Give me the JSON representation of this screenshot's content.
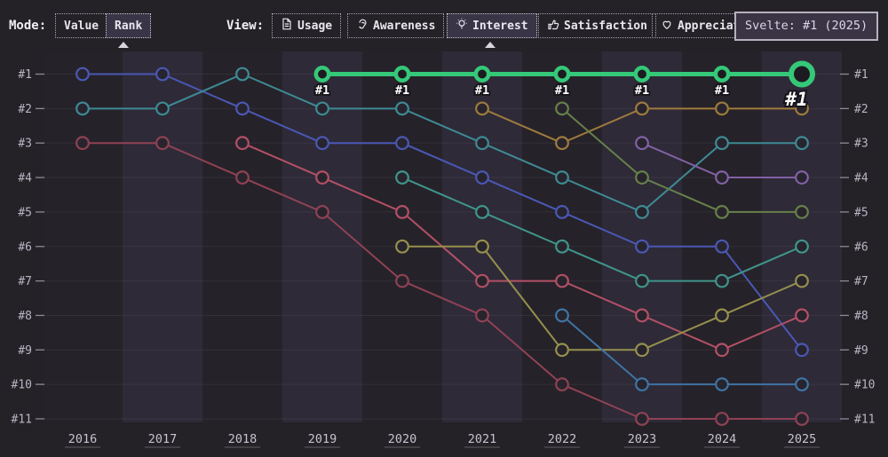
{
  "header": {
    "mode": {
      "label": "Mode:",
      "options": [
        {
          "label": "Value",
          "selected": false
        },
        {
          "label": "Rank",
          "selected": true
        }
      ]
    },
    "view": {
      "label": "View:",
      "options": [
        {
          "label": "Usage",
          "icon": "document-icon",
          "selected": false
        },
        {
          "label": "Awareness",
          "icon": "ear-icon",
          "selected": false
        },
        {
          "label": "Interest",
          "icon": "lightbulb-icon",
          "selected": true
        },
        {
          "label": "Satisfaction",
          "icon": "thumbs-up-icon",
          "selected": false
        },
        {
          "label": "Appreciation",
          "icon": "heart-icon",
          "selected": false
        }
      ]
    }
  },
  "tooltip": {
    "text": "Svelte: #1 (2025)"
  },
  "chart_data": {
    "type": "line",
    "subtype": "bump-rank-chart",
    "x": [
      2016,
      2017,
      2018,
      2019,
      2020,
      2021,
      2022,
      2023,
      2024,
      2025
    ],
    "rank_labels": [
      "#1",
      "#2",
      "#3",
      "#4",
      "#5",
      "#6",
      "#7",
      "#8",
      "#9",
      "#10",
      "#11"
    ],
    "ylim": [
      1,
      11
    ],
    "grid": true,
    "legend": "none",
    "highlight_point_label": "#1",
    "highlight_color": "#35c878",
    "series": [
      {
        "id": "indigo-blue",
        "color": "#4a58b4",
        "highlight": false,
        "ranks": [
          1,
          1,
          2,
          3,
          3,
          4,
          5,
          6,
          6,
          9
        ]
      },
      {
        "id": "teal",
        "color": "#3e8a94",
        "highlight": false,
        "ranks": [
          2,
          2,
          1,
          2,
          2,
          3,
          4,
          5,
          3,
          3
        ]
      },
      {
        "id": "maroon",
        "color": "#8f4254",
        "highlight": false,
        "ranks": [
          3,
          3,
          4,
          5,
          7,
          8,
          10,
          11,
          11,
          11
        ]
      },
      {
        "id": "rose",
        "color": "#b25065",
        "highlight": false,
        "ranks": [
          null,
          null,
          3,
          4,
          5,
          7,
          7,
          8,
          9,
          8
        ]
      },
      {
        "id": "sea-teal",
        "color": "#3f958b",
        "highlight": false,
        "ranks": [
          null,
          null,
          null,
          null,
          4,
          5,
          6,
          7,
          7,
          6
        ]
      },
      {
        "id": "olive",
        "color": "#95904d",
        "highlight": false,
        "ranks": [
          null,
          null,
          null,
          null,
          6,
          6,
          9,
          9,
          8,
          7
        ]
      },
      {
        "id": "orange",
        "color": "#9e7b3d",
        "highlight": false,
        "ranks": [
          null,
          null,
          null,
          null,
          null,
          2,
          3,
          2,
          2,
          2
        ]
      },
      {
        "id": "sage-green",
        "color": "#66804a",
        "highlight": false,
        "ranks": [
          null,
          null,
          null,
          null,
          null,
          null,
          2,
          4,
          5,
          5
        ]
      },
      {
        "id": "steel-blue",
        "color": "#3f74a3",
        "highlight": false,
        "ranks": [
          null,
          null,
          null,
          null,
          null,
          null,
          8,
          10,
          10,
          10
        ]
      },
      {
        "id": "purple",
        "color": "#8161a5",
        "highlight": false,
        "ranks": [
          null,
          null,
          null,
          null,
          null,
          null,
          null,
          3,
          4,
          4
        ]
      },
      {
        "id": "svelte",
        "label": "Svelte",
        "color": "#35c878",
        "highlight": true,
        "ranks": [
          null,
          null,
          null,
          1,
          1,
          1,
          1,
          1,
          1,
          1
        ]
      }
    ]
  }
}
